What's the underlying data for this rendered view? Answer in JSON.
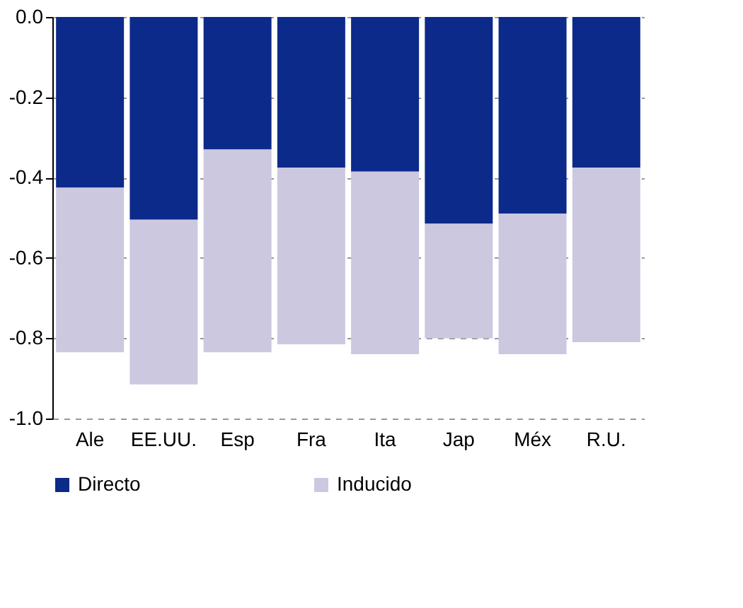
{
  "chart_data": {
    "type": "bar",
    "stacked": true,
    "categories": [
      "Ale",
      "EE.UU.",
      "Esp",
      "Fra",
      "Ita",
      "Jap",
      "Méx",
      "R.U."
    ],
    "series": [
      {
        "name": "Directo",
        "color": "#0c2a8a",
        "values": [
          -0.425,
          -0.505,
          -0.33,
          -0.375,
          -0.385,
          -0.515,
          -0.49,
          -0.375
        ]
      },
      {
        "name": "Inducido",
        "color": "#cbc8e0",
        "values": [
          -0.41,
          -0.41,
          -0.505,
          -0.44,
          -0.455,
          -0.285,
          -0.35,
          -0.435
        ]
      }
    ],
    "ylim": [
      -1.0,
      0.0
    ],
    "yticks": [
      {
        "value": 0,
        "label": "0.0"
      },
      -0.2,
      -0.4,
      -0.6,
      -0.8,
      {
        "value": -1,
        "label": "-1.0"
      }
    ],
    "grid": "y",
    "legend": "bottom"
  }
}
